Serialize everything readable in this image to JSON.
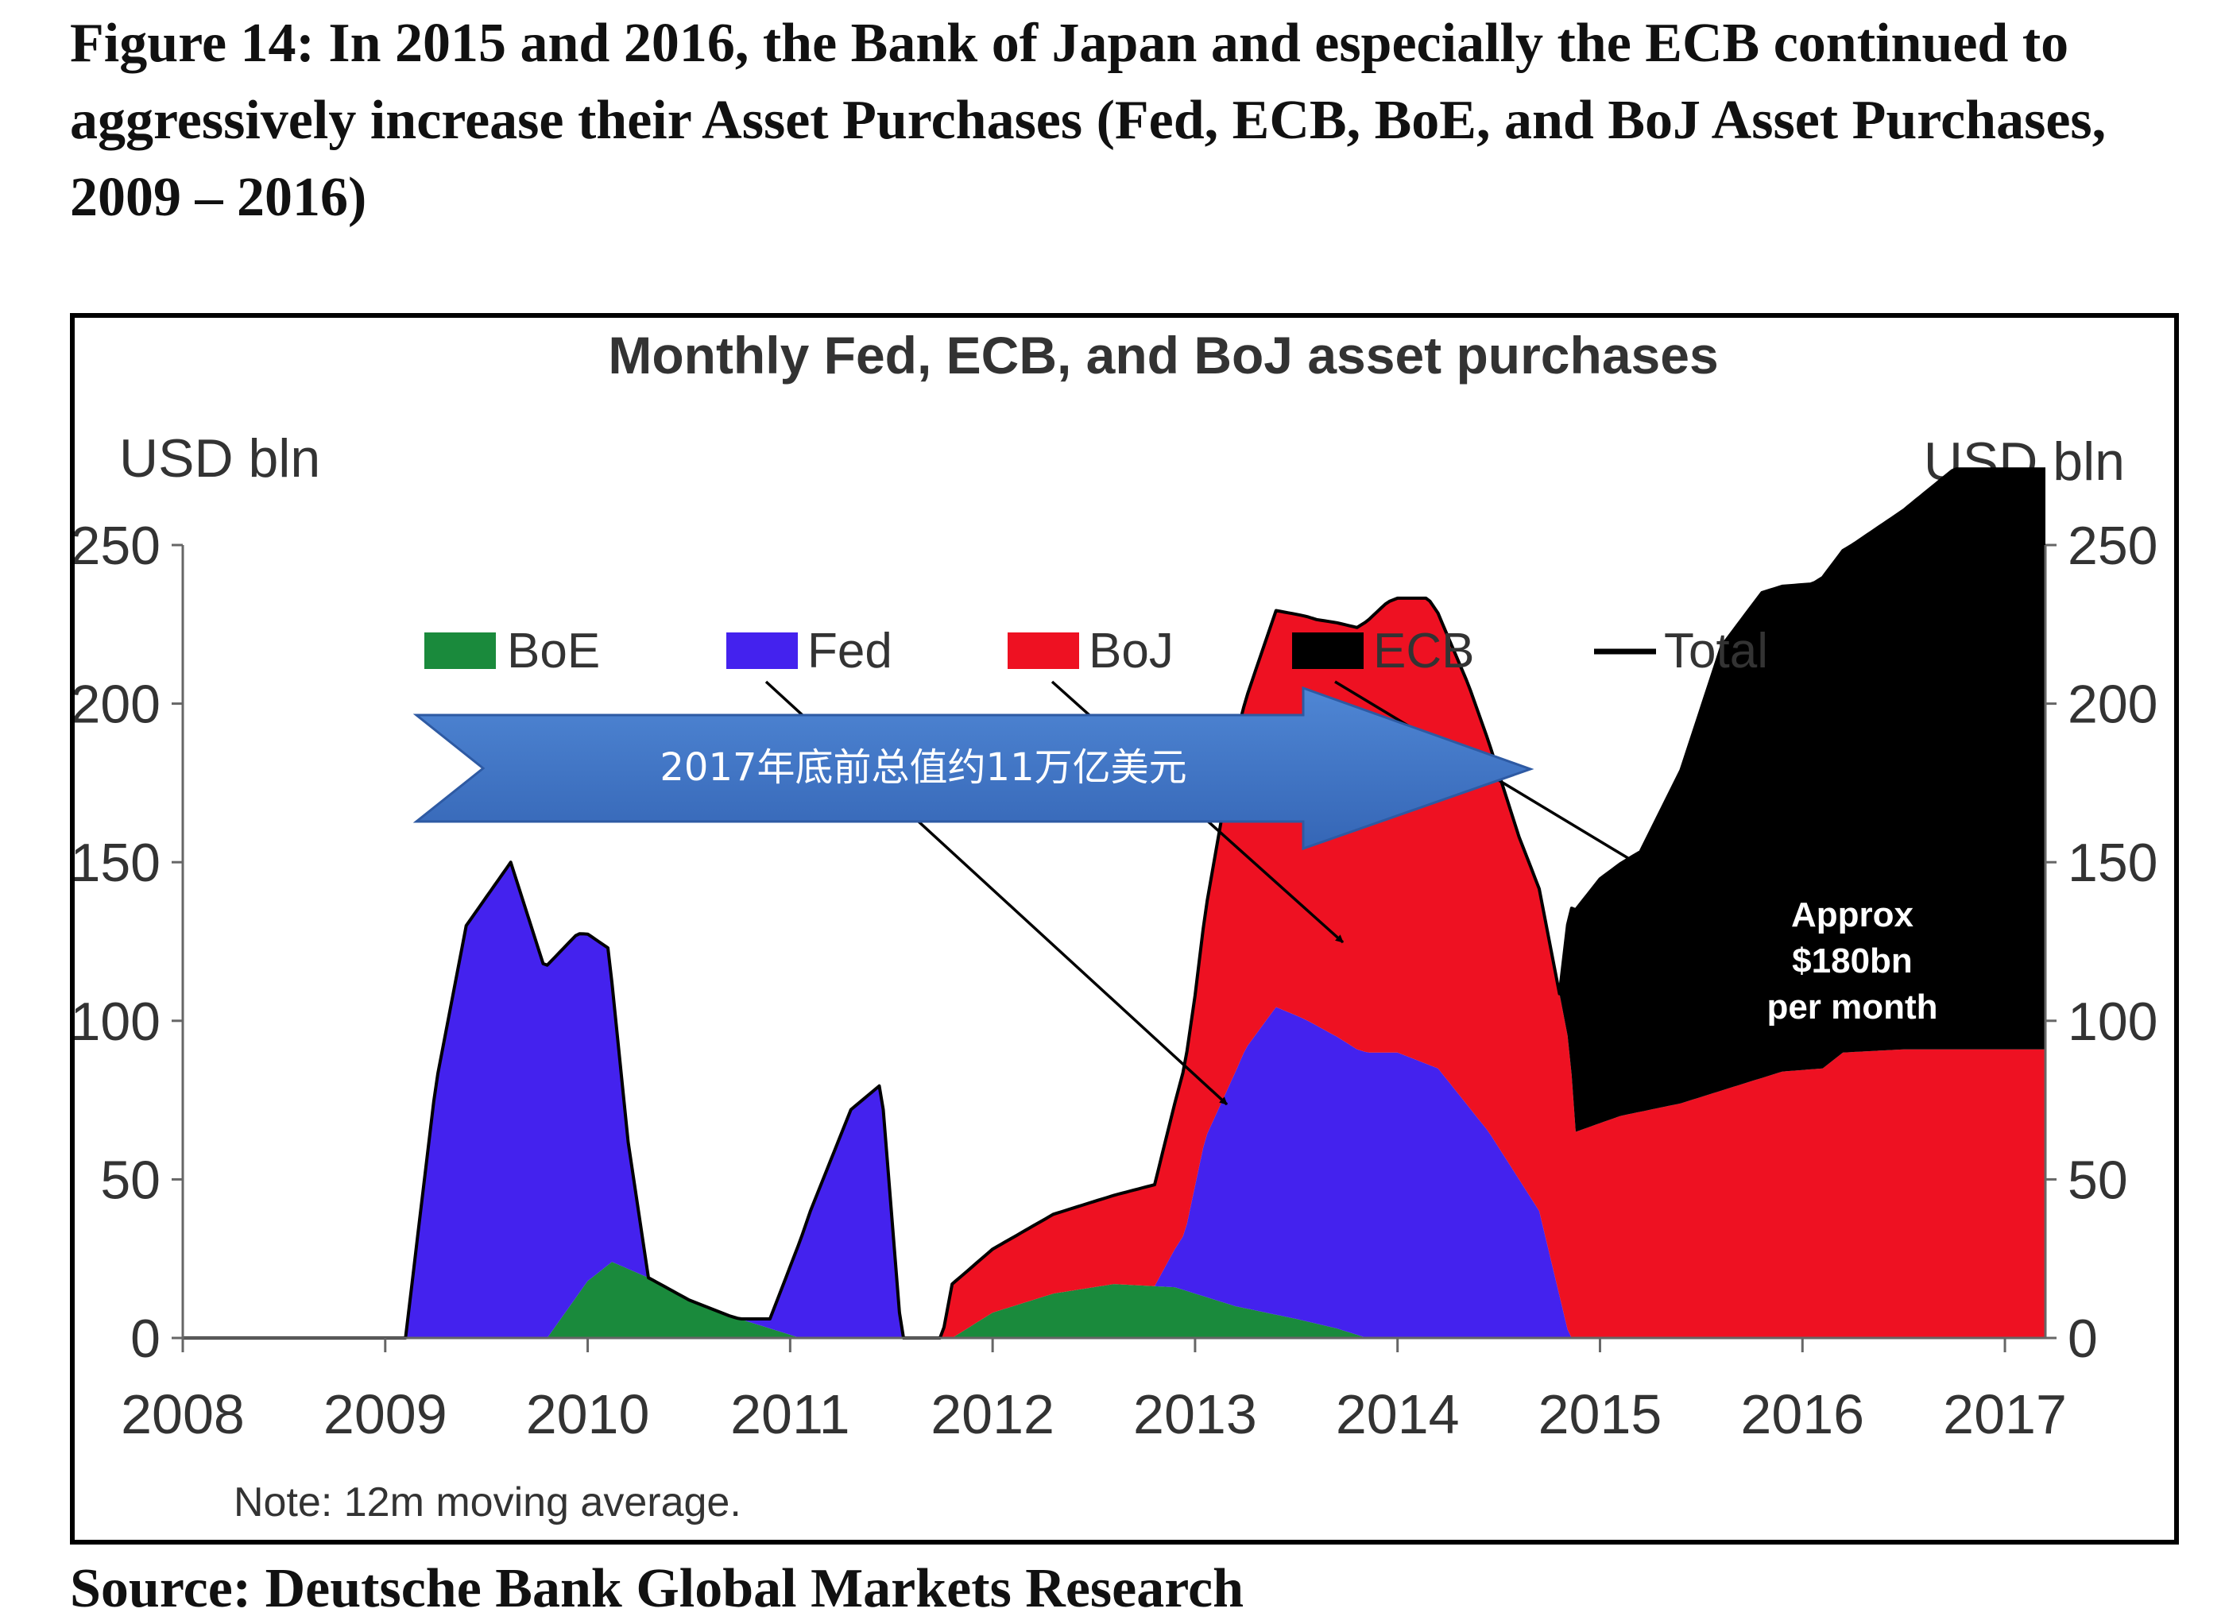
{
  "caption": "Figure 14: In 2015 and 2016, the Bank of Japan and especially the ECB continued to aggressively increase their Asset Purchases (Fed, ECB, BoE, and BoJ Asset Purchases, 2009 – 2016)",
  "source": "Source: Deutsche Bank Global Markets Research",
  "chart_data": {
    "type": "area",
    "title": "Monthly Fed, ECB, and BoJ asset purchases",
    "ylabel_left": "USD bln",
    "ylabel_right": "USD bln",
    "ylim": [
      0,
      250
    ],
    "yticks": [
      0,
      50,
      100,
      150,
      200,
      250
    ],
    "xlim": [
      2008,
      2017.2
    ],
    "xticks": [
      "2008",
      "2009",
      "2010",
      "2011",
      "2012",
      "2013",
      "2014",
      "2015",
      "2016",
      "2017"
    ],
    "note": "Note: 12m moving average.",
    "legend_position": "top",
    "stacked": true,
    "series": [
      {
        "name": "BoE",
        "color": "#1a8a3c",
        "points": [
          [
            2009.8,
            0
          ],
          [
            2010.0,
            18
          ],
          [
            2010.12,
            24
          ],
          [
            2010.3,
            19
          ],
          [
            2010.5,
            12
          ],
          [
            2010.7,
            7
          ],
          [
            2010.9,
            3
          ],
          [
            2011.05,
            0
          ],
          [
            2011.8,
            0
          ],
          [
            2012.0,
            8
          ],
          [
            2012.3,
            14
          ],
          [
            2012.6,
            17
          ],
          [
            2012.9,
            16
          ],
          [
            2013.2,
            10
          ],
          [
            2013.5,
            6
          ],
          [
            2013.7,
            3
          ],
          [
            2013.85,
            0
          ]
        ]
      },
      {
        "name": "Fed",
        "color": "#4422ee",
        "points": [
          [
            2009.1,
            0
          ],
          [
            2009.25,
            80
          ],
          [
            2009.4,
            130
          ],
          [
            2009.62,
            150
          ],
          [
            2009.78,
            118
          ],
          [
            2009.95,
            114
          ],
          [
            2010.1,
            100
          ],
          [
            2010.2,
            40
          ],
          [
            2010.3,
            0
          ],
          [
            2010.75,
            0
          ],
          [
            2010.9,
            3
          ],
          [
            2011.1,
            40
          ],
          [
            2011.3,
            72
          ],
          [
            2011.45,
            80
          ],
          [
            2011.55,
            0
          ],
          [
            2012.8,
            0
          ],
          [
            2012.95,
            18
          ],
          [
            2013.05,
            50
          ],
          [
            2013.25,
            82
          ],
          [
            2013.4,
            97
          ],
          [
            2013.55,
            95
          ],
          [
            2013.8,
            90
          ],
          [
            2014.0,
            90
          ],
          [
            2014.2,
            85
          ],
          [
            2014.45,
            65
          ],
          [
            2014.7,
            40
          ],
          [
            2014.85,
            0
          ]
        ]
      },
      {
        "name": "BoJ",
        "color": "#ee1122",
        "points": [
          [
            2011.75,
            0
          ],
          [
            2011.8,
            17
          ],
          [
            2012.0,
            20
          ],
          [
            2012.3,
            25
          ],
          [
            2012.6,
            28
          ],
          [
            2012.8,
            32
          ],
          [
            2013.0,
            60
          ],
          [
            2013.2,
            105
          ],
          [
            2013.4,
            125
          ],
          [
            2013.6,
            128
          ],
          [
            2013.8,
            133
          ],
          [
            2013.95,
            142
          ],
          [
            2014.15,
            147
          ],
          [
            2014.35,
            133
          ],
          [
            2014.6,
            108
          ],
          [
            2014.85,
            92
          ],
          [
            2014.88,
            65
          ],
          [
            2015.1,
            70
          ],
          [
            2015.4,
            74
          ],
          [
            2015.7,
            80
          ],
          [
            2015.9,
            84
          ],
          [
            2016.1,
            85
          ],
          [
            2016.2,
            90
          ],
          [
            2016.5,
            91
          ],
          [
            2017.2,
            91
          ]
        ]
      },
      {
        "name": "ECB",
        "color": "#000000",
        "points": [
          [
            2014.8,
            0
          ],
          [
            2014.88,
            70
          ],
          [
            2015.0,
            77
          ],
          [
            2015.2,
            82
          ],
          [
            2015.4,
            105
          ],
          [
            2015.6,
            140
          ],
          [
            2015.8,
            153
          ],
          [
            2016.05,
            153
          ],
          [
            2016.25,
            160
          ],
          [
            2016.5,
            170
          ],
          [
            2016.75,
            183
          ],
          [
            2017.0,
            183
          ],
          [
            2017.2,
            183
          ]
        ]
      }
    ],
    "total": {
      "name": "Total",
      "color": "#000000"
    },
    "annotations": {
      "arrow_text": "2017年底前总值约11万亿美元",
      "ecb_label": [
        "Approx",
        "$180bn",
        "per month"
      ]
    }
  }
}
